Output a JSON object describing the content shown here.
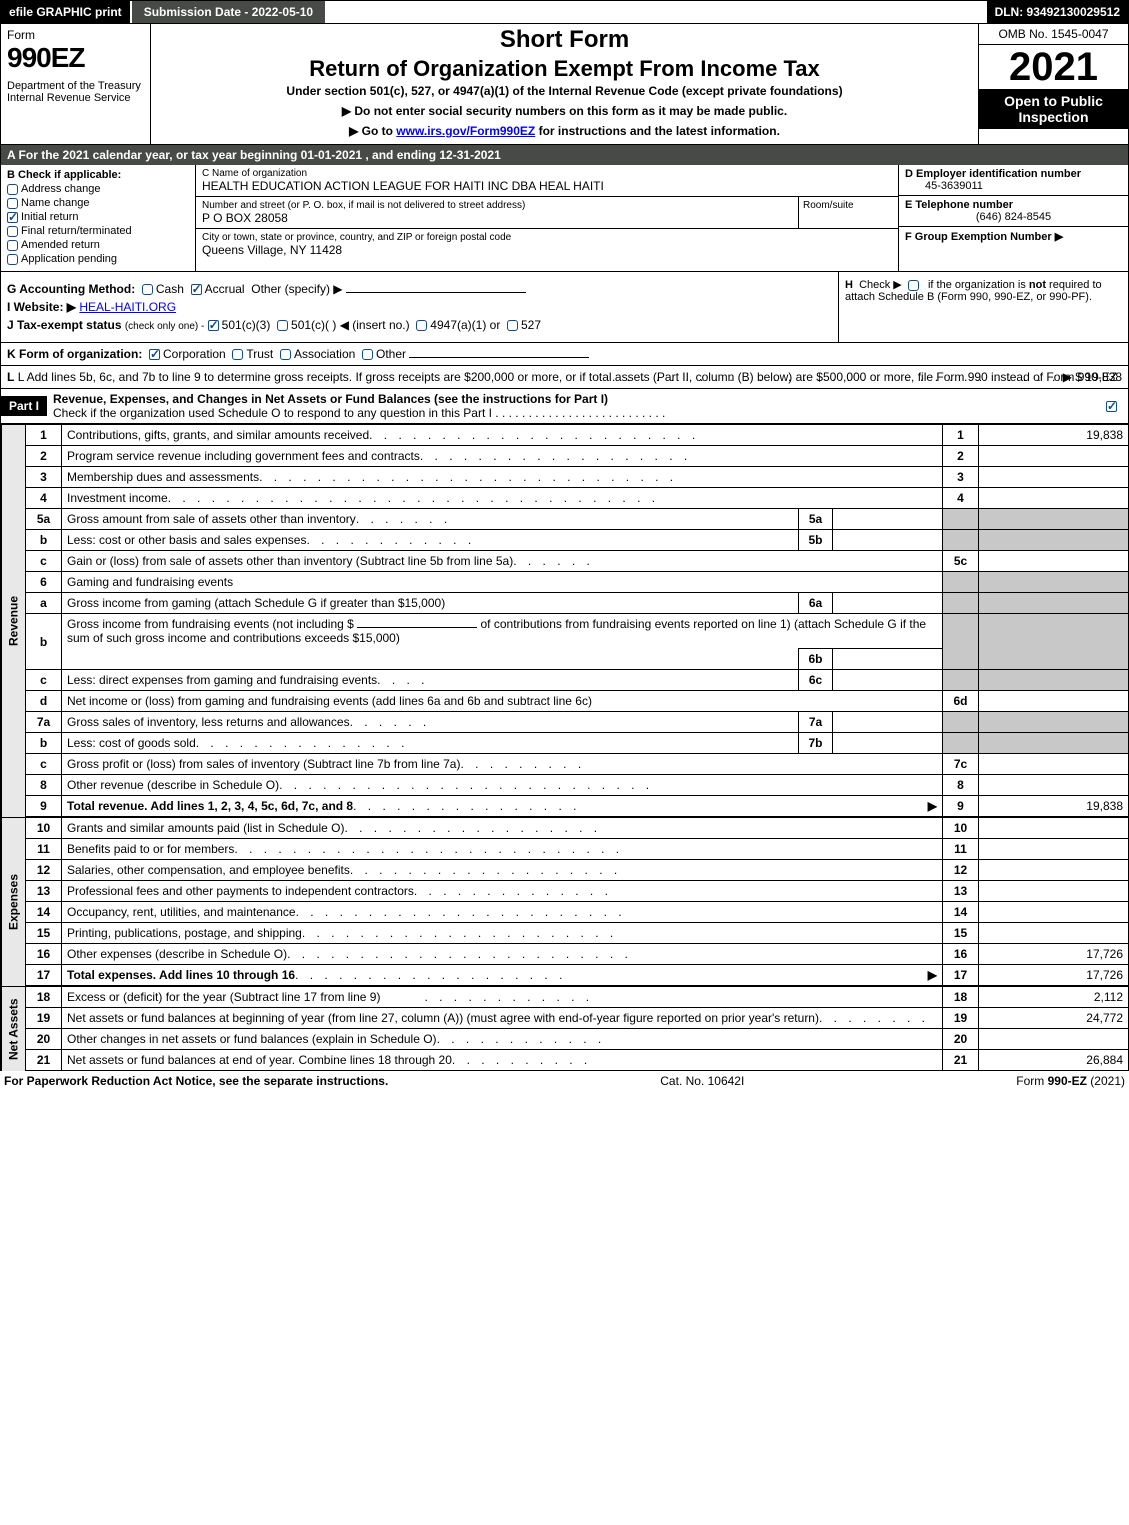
{
  "topbar": {
    "left": "efile GRAPHIC print",
    "mid": "Submission Date - 2022-05-10",
    "right": "DLN: 93492130029512"
  },
  "header": {
    "formword": "Form",
    "formnum": "990EZ",
    "dept": "Department of the Treasury\nInternal Revenue Service",
    "shortform": "Short Form",
    "title": "Return of Organization Exempt From Income Tax",
    "subtitle": "Under section 501(c), 527, or 4947(a)(1) of the Internal Revenue Code (except private foundations)",
    "warn1": "▶ Do not enter social security numbers on this form as it may be made public.",
    "warn2_pre": "▶ Go to ",
    "warn2_link": "www.irs.gov/Form990EZ",
    "warn2_post": " for instructions and the latest information.",
    "omb": "OMB No. 1545-0047",
    "year": "2021",
    "inspect": "Open to Public Inspection"
  },
  "rowA": "A  For the 2021 calendar year, or tax year beginning 01-01-2021 , and ending 12-31-2021",
  "boxB": {
    "label": "B  Check if applicable:",
    "items": [
      {
        "txt": "Address change",
        "chk": false,
        "shape": "rd"
      },
      {
        "txt": "Name change",
        "chk": false,
        "shape": "rd"
      },
      {
        "txt": "Initial return",
        "chk": true,
        "shape": "sq"
      },
      {
        "txt": "Final return/terminated",
        "chk": false,
        "shape": "rd"
      },
      {
        "txt": "Amended return",
        "chk": false,
        "shape": "rd"
      },
      {
        "txt": "Application pending",
        "chk": false,
        "shape": "rd"
      }
    ]
  },
  "boxC": {
    "name_lbl": "C Name of organization",
    "name": "HEALTH EDUCATION ACTION LEAGUE FOR HAITI INC DBA HEAL HAITI",
    "street_lbl": "Number and street (or P. O. box, if mail is not delivered to street address)",
    "room_lbl": "Room/suite",
    "street": "P O BOX 28058",
    "city_lbl": "City or town, state or province, country, and ZIP or foreign postal code",
    "city": "Queens Village, NY  11428"
  },
  "boxD": {
    "lbl": "D Employer identification number",
    "val": "45-3639011"
  },
  "boxE": {
    "lbl": "E Telephone number",
    "val": "(646) 824-8545"
  },
  "boxF": {
    "lbl": "F Group Exemption Number  ▶",
    "val": ""
  },
  "boxG": {
    "lbl": "G Accounting Method:",
    "cash": "Cash",
    "accrual": "Accrual",
    "other": "Other (specify) ▶"
  },
  "boxH": {
    "txt": "H  Check ▶     if the organization is not required to attach Schedule B (Form 990, 990-EZ, or 990-PF)."
  },
  "boxI": {
    "lbl": "I Website: ▶",
    "val": "HEAL-HAITI.ORG"
  },
  "boxJ": {
    "lbl": "J Tax-exempt status",
    "note": "(check only one) -",
    "o1": "501(c)(3)",
    "o2": "501(c)(  ) ◀ (insert no.)",
    "o3": "4947(a)(1) or",
    "o4": "527"
  },
  "boxK": {
    "lbl": "K Form of organization:",
    "o1": "Corporation",
    "o2": "Trust",
    "o3": "Association",
    "o4": "Other"
  },
  "boxL": {
    "txt": "L Add lines 5b, 6c, and 7b to line 9 to determine gross receipts. If gross receipts are $200,000 or more, or if total assets (Part II, column (B) below) are $500,000 or more, file Form 990 instead of Form 990-EZ",
    "val": "▶ $ 19,838"
  },
  "part1": {
    "hdr": "Part I",
    "title": "Revenue, Expenses, and Changes in Net Assets or Fund Balances (see the instructions for Part I)",
    "sub": "Check if the organization used Schedule O to respond to any question in this Part I"
  },
  "section_labels": {
    "rev": "Revenue",
    "exp": "Expenses",
    "net": "Net Assets"
  },
  "lines": {
    "l1": {
      "n": "1",
      "d": "Contributions, gifts, grants, and similar amounts received",
      "c": "1",
      "v": "19,838"
    },
    "l2": {
      "n": "2",
      "d": "Program service revenue including government fees and contracts",
      "c": "2",
      "v": ""
    },
    "l3": {
      "n": "3",
      "d": "Membership dues and assessments",
      "c": "3",
      "v": ""
    },
    "l4": {
      "n": "4",
      "d": "Investment income",
      "c": "4",
      "v": ""
    },
    "l5a": {
      "n": "5a",
      "d": "Gross amount from sale of assets other than inventory",
      "sn": "5a",
      "sv": ""
    },
    "l5b": {
      "n": "b",
      "d": "Less: cost or other basis and sales expenses",
      "sn": "5b",
      "sv": ""
    },
    "l5c": {
      "n": "c",
      "d": "Gain or (loss) from sale of assets other than inventory (Subtract line 5b from line 5a)",
      "c": "5c",
      "v": ""
    },
    "l6": {
      "n": "6",
      "d": "Gaming and fundraising events"
    },
    "l6a": {
      "n": "a",
      "d": "Gross income from gaming (attach Schedule G if greater than $15,000)",
      "sn": "6a",
      "sv": ""
    },
    "l6b": {
      "n": "b",
      "d1": "Gross income from fundraising events (not including $",
      "d2": "of contributions from fundraising events reported on line 1) (attach Schedule G if the sum of such gross income and contributions exceeds $15,000)",
      "sn": "6b",
      "sv": ""
    },
    "l6c": {
      "n": "c",
      "d": "Less: direct expenses from gaming and fundraising events",
      "sn": "6c",
      "sv": ""
    },
    "l6d": {
      "n": "d",
      "d": "Net income or (loss) from gaming and fundraising events (add lines 6a and 6b and subtract line 6c)",
      "c": "6d",
      "v": ""
    },
    "l7a": {
      "n": "7a",
      "d": "Gross sales of inventory, less returns and allowances",
      "sn": "7a",
      "sv": ""
    },
    "l7b": {
      "n": "b",
      "d": "Less: cost of goods sold",
      "sn": "7b",
      "sv": ""
    },
    "l7c": {
      "n": "c",
      "d": "Gross profit or (loss) from sales of inventory (Subtract line 7b from line 7a)",
      "c": "7c",
      "v": ""
    },
    "l8": {
      "n": "8",
      "d": "Other revenue (describe in Schedule O)",
      "c": "8",
      "v": ""
    },
    "l9": {
      "n": "9",
      "d": "Total revenue. Add lines 1, 2, 3, 4, 5c, 6d, 7c, and 8",
      "c": "9",
      "v": "19,838",
      "arrow": true,
      "bold": true
    },
    "l10": {
      "n": "10",
      "d": "Grants and similar amounts paid (list in Schedule O)",
      "c": "10",
      "v": ""
    },
    "l11": {
      "n": "11",
      "d": "Benefits paid to or for members",
      "c": "11",
      "v": ""
    },
    "l12": {
      "n": "12",
      "d": "Salaries, other compensation, and employee benefits",
      "c": "12",
      "v": ""
    },
    "l13": {
      "n": "13",
      "d": "Professional fees and other payments to independent contractors",
      "c": "13",
      "v": ""
    },
    "l14": {
      "n": "14",
      "d": "Occupancy, rent, utilities, and maintenance",
      "c": "14",
      "v": ""
    },
    "l15": {
      "n": "15",
      "d": "Printing, publications, postage, and shipping",
      "c": "15",
      "v": ""
    },
    "l16": {
      "n": "16",
      "d": "Other expenses (describe in Schedule O)",
      "c": "16",
      "v": "17,726"
    },
    "l17": {
      "n": "17",
      "d": "Total expenses. Add lines 10 through 16",
      "c": "17",
      "v": "17,726",
      "arrow": true,
      "bold": true
    },
    "l18": {
      "n": "18",
      "d": "Excess or (deficit) for the year (Subtract line 17 from line 9)",
      "c": "18",
      "v": "2,112"
    },
    "l19": {
      "n": "19",
      "d": "Net assets or fund balances at beginning of year (from line 27, column (A)) (must agree with end-of-year figure reported on prior year's return)",
      "c": "19",
      "v": "24,772"
    },
    "l20": {
      "n": "20",
      "d": "Other changes in net assets or fund balances (explain in Schedule O)",
      "c": "20",
      "v": ""
    },
    "l21": {
      "n": "21",
      "d": "Net assets or fund balances at end of year. Combine lines 18 through 20",
      "c": "21",
      "v": "26,884"
    }
  },
  "footer": {
    "left": "For Paperwork Reduction Act Notice, see the separate instructions.",
    "mid": "Cat. No. 10642I",
    "right_pre": "Form ",
    "right_bold": "990-EZ",
    "right_post": " (2021)"
  },
  "colors": {
    "dark_gray": "#474a47",
    "blue_ck": "#114b8c",
    "shade": "#c8c8c8"
  }
}
